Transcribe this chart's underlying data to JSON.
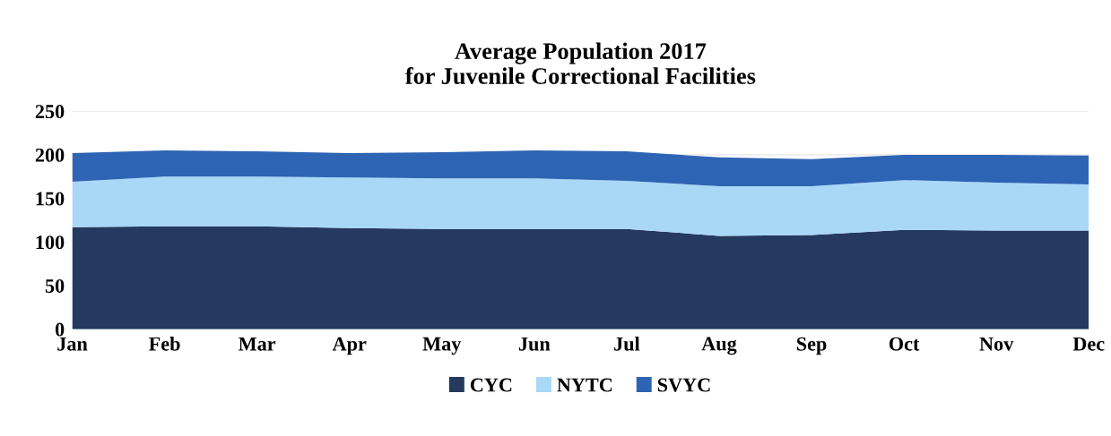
{
  "chart_data": {
    "type": "area",
    "title": "Average Population 2017\nfor Juvenile Correctional Facilities",
    "categories": [
      "Jan",
      "Feb",
      "Mar",
      "Apr",
      "May",
      "Jun",
      "Jul",
      "Aug",
      "Sep",
      "Oct",
      "Nov",
      "Dec"
    ],
    "stacked": true,
    "series": [
      {
        "name": "CYC",
        "color": "#253a5e",
        "values": [
          117,
          118,
          118,
          116,
          115,
          115,
          115,
          107,
          108,
          114,
          113,
          113
        ]
      },
      {
        "name": "NYTC",
        "color": "#a9d8f7",
        "values": [
          52,
          57,
          57,
          58,
          58,
          58,
          55,
          57,
          56,
          57,
          55,
          53
        ]
      },
      {
        "name": "SVYC",
        "color": "#2e64b4",
        "values": [
          33,
          30,
          29,
          28,
          30,
          32,
          34,
          33,
          31,
          29,
          32,
          33
        ]
      }
    ],
    "ylim": [
      0,
      250
    ],
    "yticks": [
      0,
      50,
      100,
      150,
      200,
      250
    ],
    "grid": "y",
    "legend": "bottom"
  }
}
